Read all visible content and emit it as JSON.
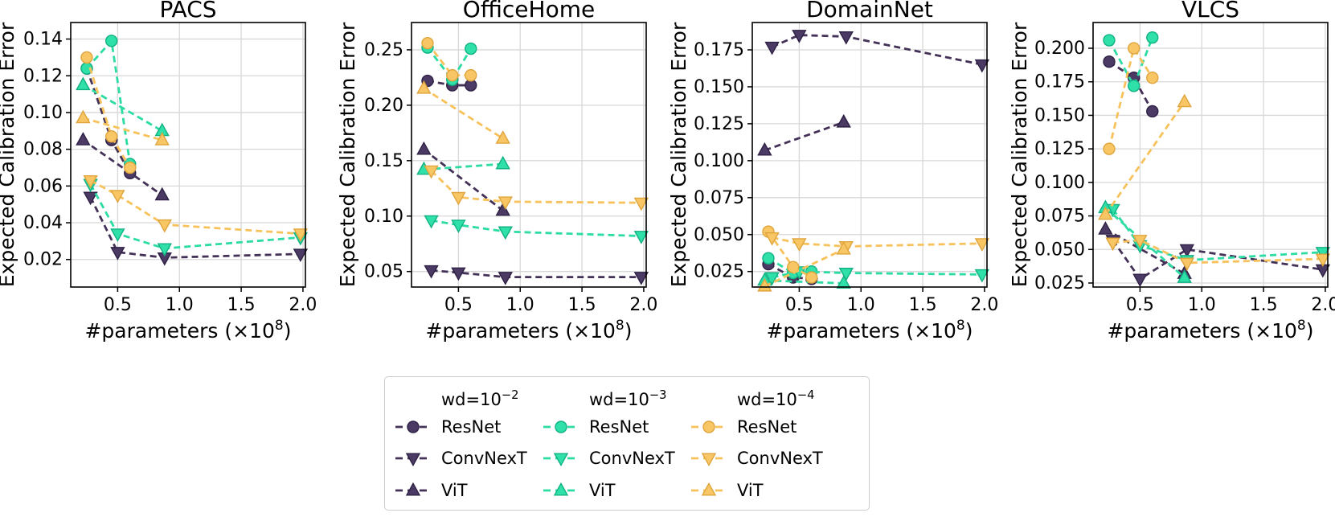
{
  "figure": {
    "ylabel": "Expected Calibration Error",
    "xlabel": {
      "pre": "#parameters (×10",
      "sup": "8",
      "post": ")"
    },
    "background": "#ffffff",
    "grid_color": "#d8d8d8",
    "colors": {
      "wd2": {
        "line": "#443157",
        "fill": "#4b3a63",
        "edge": "#2e2145"
      },
      "wd3": {
        "line": "#2cdca4",
        "fill": "#2fe0a8",
        "edge": "#12b183"
      },
      "wd4": {
        "line": "#f7c25b",
        "fill": "#f9c666",
        "edge": "#dfa53c"
      }
    }
  },
  "chart_data": [
    {
      "type": "line",
      "title": "PACS",
      "xlabel": "#parameters (×10^8)",
      "ylabel": "Expected Calibration Error",
      "xlim": [
        0.12,
        2.02
      ],
      "ylim": [
        0.005,
        0.149
      ],
      "xticks": [
        0.5,
        1.0,
        1.5,
        2.0
      ],
      "xtick_labels": [
        "0.5",
        "1.0",
        "1.5",
        "2.0"
      ],
      "yticks": [
        0.02,
        0.04,
        0.06,
        0.08,
        0.1,
        0.12,
        0.14
      ],
      "ytick_labels": [
        "0.02",
        "0.04",
        "0.06",
        "0.08",
        "0.10",
        "0.12",
        "0.14"
      ],
      "grid": true,
      "series": [
        {
          "wd": "1e-2",
          "arch": "ResNet",
          "color": "wd2",
          "marker": "circle",
          "x": [
            0.25,
            0.45,
            0.6
          ],
          "y": [
            0.124,
            0.085,
            0.067
          ]
        },
        {
          "wd": "1e-2",
          "arch": "ConvNexT",
          "color": "wd2",
          "marker": "triangle-down",
          "x": [
            0.28,
            0.5,
            0.88,
            1.98
          ],
          "y": [
            0.054,
            0.024,
            0.021,
            0.023
          ]
        },
        {
          "wd": "1e-2",
          "arch": "ViT",
          "color": "wd2",
          "marker": "triangle-up",
          "x": [
            0.22,
            0.86
          ],
          "y": [
            0.085,
            0.055
          ]
        },
        {
          "wd": "1e-3",
          "arch": "ResNet",
          "color": "wd3",
          "marker": "circle",
          "x": [
            0.25,
            0.45,
            0.6
          ],
          "y": [
            0.124,
            0.139,
            0.072
          ]
        },
        {
          "wd": "1e-3",
          "arch": "ConvNexT",
          "color": "wd3",
          "marker": "triangle-down",
          "x": [
            0.28,
            0.5,
            0.88,
            1.98
          ],
          "y": [
            0.061,
            0.034,
            0.026,
            0.032
          ]
        },
        {
          "wd": "1e-3",
          "arch": "ViT",
          "color": "wd3",
          "marker": "triangle-up",
          "x": [
            0.22,
            0.86
          ],
          "y": [
            0.115,
            0.09
          ]
        },
        {
          "wd": "1e-4",
          "arch": "ResNet",
          "color": "wd4",
          "marker": "circle",
          "x": [
            0.25,
            0.45,
            0.6
          ],
          "y": [
            0.13,
            0.087,
            0.07
          ]
        },
        {
          "wd": "1e-4",
          "arch": "ConvNexT",
          "color": "wd4",
          "marker": "triangle-down",
          "x": [
            0.28,
            0.5,
            0.88,
            1.98
          ],
          "y": [
            0.063,
            0.055,
            0.039,
            0.034
          ]
        },
        {
          "wd": "1e-4",
          "arch": "ViT",
          "color": "wd4",
          "marker": "triangle-up",
          "x": [
            0.22,
            0.86
          ],
          "y": [
            0.097,
            0.085
          ]
        }
      ]
    },
    {
      "type": "line",
      "title": "OfficeHome",
      "xlabel": "#parameters (×10^8)",
      "ylabel": "Expected Calibration Error",
      "xlim": [
        0.12,
        2.02
      ],
      "ylim": [
        0.036,
        0.2746
      ],
      "xticks": [
        0.5,
        1.0,
        1.5,
        2.0
      ],
      "xtick_labels": [
        "0.5",
        "1.0",
        "1.5",
        "2.0"
      ],
      "yticks": [
        0.05,
        0.1,
        0.15,
        0.2,
        0.25
      ],
      "ytick_labels": [
        "0.05",
        "0.10",
        "0.15",
        "0.20",
        "0.25"
      ],
      "grid": true,
      "series": [
        {
          "wd": "1e-2",
          "arch": "ResNet",
          "color": "wd2",
          "marker": "circle",
          "x": [
            0.25,
            0.45,
            0.6
          ],
          "y": [
            0.222,
            0.218,
            0.218
          ]
        },
        {
          "wd": "1e-2",
          "arch": "ConvNexT",
          "color": "wd2",
          "marker": "triangle-down",
          "x": [
            0.28,
            0.5,
            0.88,
            1.98
          ],
          "y": [
            0.051,
            0.049,
            0.045,
            0.045
          ]
        },
        {
          "wd": "1e-2",
          "arch": "ViT",
          "color": "wd2",
          "marker": "triangle-up",
          "x": [
            0.22,
            0.86
          ],
          "y": [
            0.16,
            0.105
          ]
        },
        {
          "wd": "1e-3",
          "arch": "ResNet",
          "color": "wd3",
          "marker": "circle",
          "x": [
            0.25,
            0.45,
            0.6
          ],
          "y": [
            0.252,
            0.223,
            0.251
          ]
        },
        {
          "wd": "1e-3",
          "arch": "ConvNexT",
          "color": "wd3",
          "marker": "triangle-down",
          "x": [
            0.28,
            0.5,
            0.88,
            1.98
          ],
          "y": [
            0.096,
            0.092,
            0.086,
            0.082
          ]
        },
        {
          "wd": "1e-3",
          "arch": "ViT",
          "color": "wd3",
          "marker": "triangle-up",
          "x": [
            0.22,
            0.86
          ],
          "y": [
            0.142,
            0.147
          ]
        },
        {
          "wd": "1e-4",
          "arch": "ResNet",
          "color": "wd4",
          "marker": "circle",
          "x": [
            0.25,
            0.45,
            0.6
          ],
          "y": [
            0.256,
            0.227,
            0.227
          ]
        },
        {
          "wd": "1e-4",
          "arch": "ConvNexT",
          "color": "wd4",
          "marker": "triangle-down",
          "x": [
            0.28,
            0.5,
            0.88,
            1.98
          ],
          "y": [
            0.141,
            0.117,
            0.113,
            0.112
          ]
        },
        {
          "wd": "1e-4",
          "arch": "ViT",
          "color": "wd4",
          "marker": "triangle-up",
          "x": [
            0.22,
            0.86
          ],
          "y": [
            0.215,
            0.17
          ]
        }
      ]
    },
    {
      "type": "line",
      "title": "DomainNet",
      "xlabel": "#parameters (×10^8)",
      "ylabel": "Expected Calibration Error",
      "xlim": [
        0.12,
        2.02
      ],
      "ylim": [
        0.0145,
        0.1935
      ],
      "xticks": [
        0.5,
        1.0,
        1.5,
        2.0
      ],
      "xtick_labels": [
        "0.5",
        "1.0",
        "1.5",
        "2.0"
      ],
      "yticks": [
        0.025,
        0.05,
        0.075,
        0.1,
        0.125,
        0.15,
        0.175
      ],
      "ytick_labels": [
        "0.025",
        "0.050",
        "0.075",
        "0.100",
        "0.125",
        "0.150",
        "0.175"
      ],
      "grid": true,
      "series": [
        {
          "wd": "1e-2",
          "arch": "ResNet",
          "color": "wd2",
          "marker": "circle",
          "x": [
            0.25,
            0.45,
            0.6
          ],
          "y": [
            0.03,
            0.021,
            0.02
          ]
        },
        {
          "wd": "1e-2",
          "arch": "ConvNexT",
          "color": "wd2",
          "marker": "triangle-down",
          "x": [
            0.28,
            0.5,
            0.88,
            1.98
          ],
          "y": [
            0.177,
            0.185,
            0.184,
            0.165
          ]
        },
        {
          "wd": "1e-2",
          "arch": "ViT",
          "color": "wd2",
          "marker": "triangle-up",
          "x": [
            0.22,
            0.86
          ],
          "y": [
            0.107,
            0.126
          ]
        },
        {
          "wd": "1e-3",
          "arch": "ResNet",
          "color": "wd3",
          "marker": "circle",
          "x": [
            0.25,
            0.45,
            0.6
          ],
          "y": [
            0.034,
            0.024,
            0.025
          ]
        },
        {
          "wd": "1e-3",
          "arch": "ConvNexT",
          "color": "wd3",
          "marker": "triangle-down",
          "x": [
            0.28,
            0.5,
            0.88,
            1.98
          ],
          "y": [
            0.021,
            0.025,
            0.024,
            0.023
          ]
        },
        {
          "wd": "1e-3",
          "arch": "ViT",
          "color": "wd3",
          "marker": "triangle-up",
          "x": [
            0.22,
            0.86
          ],
          "y": [
            0.019,
            0.017
          ]
        },
        {
          "wd": "1e-4",
          "arch": "ResNet",
          "color": "wd4",
          "marker": "circle",
          "x": [
            0.25,
            0.45,
            0.6
          ],
          "y": [
            0.052,
            0.028,
            0.021
          ]
        },
        {
          "wd": "1e-4",
          "arch": "ConvNexT",
          "color": "wd4",
          "marker": "triangle-down",
          "x": [
            0.28,
            0.5,
            0.88,
            1.98
          ],
          "y": [
            0.048,
            0.044,
            0.042,
            0.044
          ]
        },
        {
          "wd": "1e-4",
          "arch": "ViT",
          "color": "wd4",
          "marker": "triangle-up",
          "x": [
            0.22,
            0.86
          ],
          "y": [
            0.015,
            0.04
          ]
        }
      ]
    },
    {
      "type": "line",
      "title": "VLCS",
      "xlabel": "#parameters (×10^8)",
      "ylabel": "Expected Calibration Error",
      "xlim": [
        0.12,
        2.02
      ],
      "ylim": [
        0.022,
        0.2192
      ],
      "xticks": [
        0.5,
        1.0,
        1.5,
        2.0
      ],
      "xtick_labels": [
        "0.5",
        "1.0",
        "1.5",
        "2.0"
      ],
      "yticks": [
        0.025,
        0.05,
        0.075,
        0.1,
        0.125,
        0.15,
        0.175,
        0.2
      ],
      "ytick_labels": [
        "0.025",
        "0.050",
        "0.075",
        "0.100",
        "0.125",
        "0.150",
        "0.175",
        "0.200"
      ],
      "grid": true,
      "series": [
        {
          "wd": "1e-2",
          "arch": "ResNet",
          "color": "wd2",
          "marker": "circle",
          "x": [
            0.25,
            0.45,
            0.6
          ],
          "y": [
            0.19,
            0.178,
            0.153
          ]
        },
        {
          "wd": "1e-2",
          "arch": "ConvNexT",
          "color": "wd2",
          "marker": "triangle-down",
          "x": [
            0.28,
            0.5,
            0.88,
            1.98
          ],
          "y": [
            0.057,
            0.028,
            0.05,
            0.035
          ]
        },
        {
          "wd": "1e-2",
          "arch": "ViT",
          "color": "wd2",
          "marker": "triangle-up",
          "x": [
            0.22,
            0.86
          ],
          "y": [
            0.065,
            0.032
          ]
        },
        {
          "wd": "1e-3",
          "arch": "ResNet",
          "color": "wd3",
          "marker": "circle",
          "x": [
            0.25,
            0.45,
            0.6
          ],
          "y": [
            0.206,
            0.172,
            0.208
          ]
        },
        {
          "wd": "1e-3",
          "arch": "ConvNexT",
          "color": "wd3",
          "marker": "triangle-down",
          "x": [
            0.28,
            0.5,
            0.88,
            1.98
          ],
          "y": [
            0.08,
            0.053,
            0.042,
            0.048
          ]
        },
        {
          "wd": "1e-3",
          "arch": "ViT",
          "color": "wd3",
          "marker": "triangle-up",
          "x": [
            0.22,
            0.86
          ],
          "y": [
            0.081,
            0.029
          ]
        },
        {
          "wd": "1e-4",
          "arch": "ResNet",
          "color": "wd4",
          "marker": "circle",
          "x": [
            0.25,
            0.45,
            0.6
          ],
          "y": [
            0.125,
            0.2,
            0.178
          ]
        },
        {
          "wd": "1e-4",
          "arch": "ConvNexT",
          "color": "wd4",
          "marker": "triangle-down",
          "x": [
            0.28,
            0.5,
            0.88,
            1.98
          ],
          "y": [
            0.055,
            0.057,
            0.04,
            0.043
          ]
        },
        {
          "wd": "1e-4",
          "arch": "ViT",
          "color": "wd4",
          "marker": "triangle-up",
          "x": [
            0.22,
            0.86
          ],
          "y": [
            0.076,
            0.16
          ]
        }
      ]
    }
  ],
  "legend": {
    "columns": [
      {
        "color": "wd2",
        "header": {
          "pre": "wd=10",
          "sup": "−2"
        },
        "items": [
          {
            "label": "ResNet",
            "marker": "circle"
          },
          {
            "label": "ConvNexT",
            "marker": "triangle-down"
          },
          {
            "label": "ViT",
            "marker": "triangle-up"
          }
        ]
      },
      {
        "color": "wd3",
        "header": {
          "pre": "wd=10",
          "sup": "−3"
        },
        "items": [
          {
            "label": "ResNet",
            "marker": "circle"
          },
          {
            "label": "ConvNexT",
            "marker": "triangle-down"
          },
          {
            "label": "ViT",
            "marker": "triangle-up"
          }
        ]
      },
      {
        "color": "wd4",
        "header": {
          "pre": "wd=10",
          "sup": "−4"
        },
        "items": [
          {
            "label": "ResNet",
            "marker": "circle"
          },
          {
            "label": "ConvNexT",
            "marker": "triangle-down"
          },
          {
            "label": "ViT",
            "marker": "triangle-up"
          }
        ]
      }
    ]
  }
}
